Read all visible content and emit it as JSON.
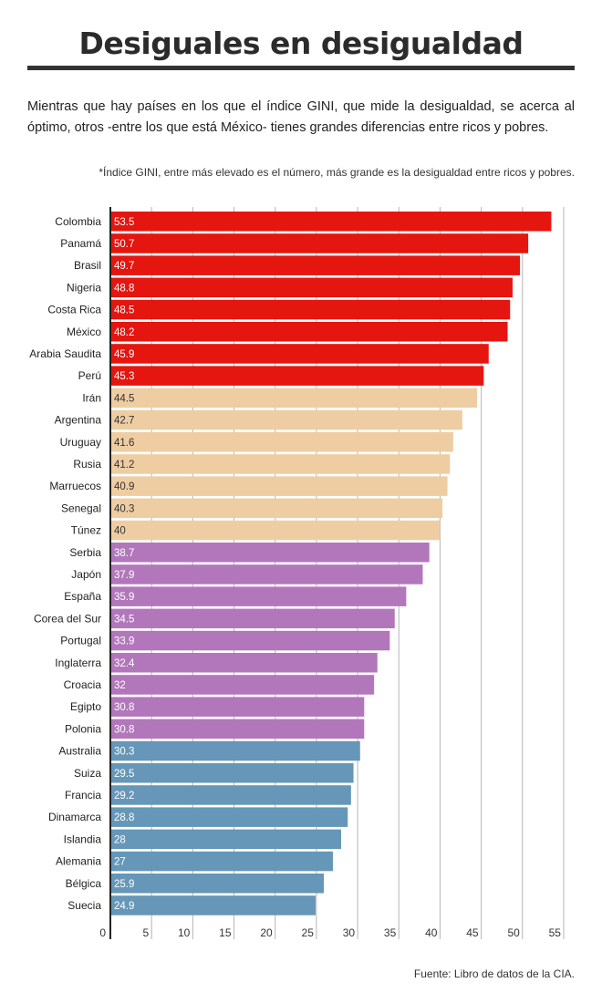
{
  "header": {
    "title": "Desiguales en desigualdad",
    "intro": "Mientras que hay países en los que el índice GINI, que mide la desigualdad, se acerca al óptimo, otros -entre los que está México- tienes grandes diferencias entre ricos y pobres.",
    "footnote": "*Índice GINI, entre más elevado es el número, más grande es la desigualdad entre ricos y pobres."
  },
  "footer": {
    "source": "Fuente: Libro de datos de la CIA."
  },
  "colors": {
    "red": "#e5150f",
    "peach": "#efcda2",
    "purple": "#b277bb",
    "blue": "#6697b8",
    "grid": "#b5b5b5",
    "axis": "#222222"
  },
  "chart_data": {
    "type": "bar",
    "orientation": "horizontal",
    "xlim": [
      0,
      55
    ],
    "xticks": [
      0,
      5,
      10,
      15,
      20,
      25,
      30,
      35,
      40,
      45,
      50,
      55
    ],
    "grid": true,
    "categories": [
      "Colombia",
      "Panamá",
      "Brasil",
      "Nigeria",
      "Costa Rica",
      "México",
      "Arabia Saudita",
      "Perú",
      "Irán",
      "Argentina",
      "Uruguay",
      "Rusia",
      "Marruecos",
      "Senegal",
      "Túnez",
      "Serbia",
      "Japón",
      "España",
      "Corea del Sur",
      "Portugal",
      "Inglaterra",
      "Croacia",
      "Egipto",
      "Polonia",
      "Australia",
      "Suiza",
      "Francia",
      "Dinamarca",
      "Islandia",
      "Alemania",
      "Bélgica",
      "Suecia"
    ],
    "values": [
      53.5,
      50.7,
      49.7,
      48.8,
      48.5,
      48.2,
      45.9,
      45.3,
      44.5,
      42.7,
      41.6,
      41.2,
      40.9,
      40.3,
      40,
      38.7,
      37.9,
      35.9,
      34.5,
      33.9,
      32.4,
      32,
      30.8,
      30.8,
      30.3,
      29.5,
      29.2,
      28.8,
      28,
      27,
      25.9,
      24.9
    ],
    "value_labels": [
      "53.5",
      "50.7",
      "49.7",
      "48.8",
      "48.5",
      "48.2",
      "45.9",
      "45.3",
      "44.5",
      "42.7",
      "41.6",
      "41.2",
      "40.9",
      "40.3",
      "40",
      "38.7",
      "37.9",
      "35.9",
      "34.5",
      "33.9",
      "32.4",
      "32",
      "30.8",
      "30.8",
      "30.3",
      "29.5",
      "29.2",
      "28.8",
      "28",
      "27",
      "25.9",
      "24.9"
    ],
    "color_groups": [
      "red",
      "red",
      "red",
      "red",
      "red",
      "red",
      "red",
      "red",
      "peach",
      "peach",
      "peach",
      "peach",
      "peach",
      "peach",
      "peach",
      "purple",
      "purple",
      "purple",
      "purple",
      "purple",
      "purple",
      "purple",
      "purple",
      "purple",
      "blue",
      "blue",
      "blue",
      "blue",
      "blue",
      "blue",
      "blue",
      "blue"
    ]
  }
}
